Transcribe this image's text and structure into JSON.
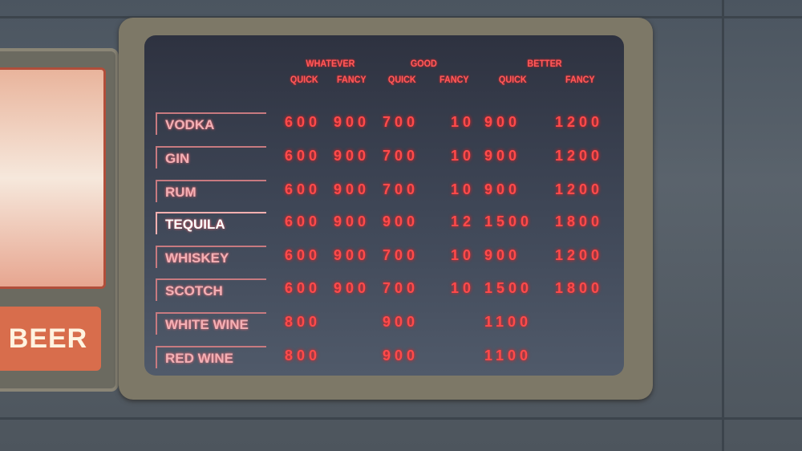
{
  "left_sign": {
    "text": "BEER"
  },
  "board": {
    "groups": [
      "WHATEVER",
      "GOOD",
      "BETTER"
    ],
    "subcolumns": [
      "QUICK",
      "FANCY",
      "QUICK",
      "FANCY",
      "QUICK",
      "FANCY"
    ],
    "rows": [
      {
        "label": "VODKA",
        "prices": [
          "600",
          "900",
          "700",
          "10",
          "900",
          "1200"
        ]
      },
      {
        "label": "GIN",
        "prices": [
          "600",
          "900",
          "700",
          "10",
          "900",
          "1200"
        ]
      },
      {
        "label": "RUM",
        "prices": [
          "600",
          "900",
          "700",
          "10",
          "900",
          "1200"
        ]
      },
      {
        "label": "TEQUILA",
        "prices": [
          "600",
          "900",
          "900",
          "12",
          "1500",
          "1800"
        ]
      },
      {
        "label": "WHISKEY",
        "prices": [
          "600",
          "900",
          "700",
          "10",
          "900",
          "1200"
        ]
      },
      {
        "label": "SCOTCH",
        "prices": [
          "600",
          "900",
          "700",
          "10",
          "1500",
          "1800"
        ]
      },
      {
        "label": "WHITE WINE",
        "prices": [
          "800",
          "",
          "900",
          "",
          "1100",
          ""
        ]
      },
      {
        "label": "RED WINE",
        "prices": [
          "800",
          "",
          "900",
          "",
          "1100",
          ""
        ]
      }
    ]
  },
  "colors": {
    "led": "#ff4a4a",
    "frame": "#7d7867"
  }
}
